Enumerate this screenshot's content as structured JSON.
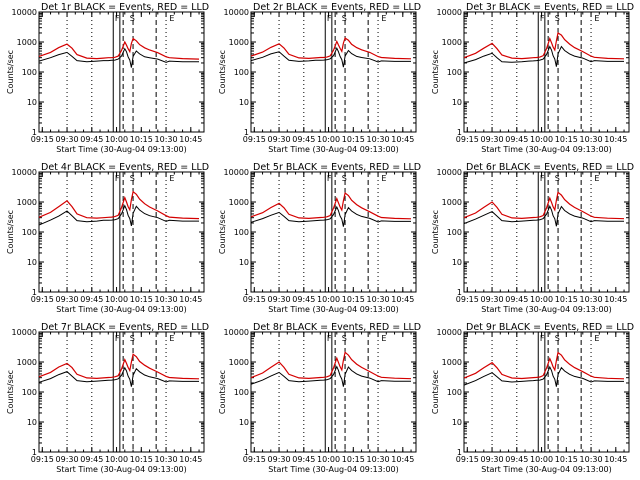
{
  "colors": {
    "events": "#000000",
    "lld": "#d40000",
    "background": "#ffffff"
  },
  "chart_data": [
    {
      "type": "line",
      "title": "Det 1r BLACK = Events, RED = LLD",
      "xlabel": "Start Time (30-Aug-04 09:13:00)",
      "ylabel": "Counts/sec",
      "ylim": [
        1,
        10000
      ],
      "yscale": "log",
      "x_tick_labels": [
        "09:15",
        "09:30",
        "09:45",
        "10:00",
        "10:15",
        "10:30",
        "10:45"
      ],
      "y_tick_labels": [
        "1",
        "10",
        "100",
        "1000",
        "10000"
      ],
      "markers": [
        "F",
        "S",
        "E"
      ]
    },
    {
      "type": "line",
      "title": "Det 2r BLACK = Events, RED = LLD",
      "xlabel": "Start Time (30-Aug-04 09:13:00)",
      "ylabel": "Counts/sec",
      "ylim": [
        1,
        10000
      ],
      "yscale": "log",
      "x_tick_labels": [
        "09:15",
        "09:30",
        "09:45",
        "10:00",
        "10:15",
        "10:30",
        "10:45"
      ],
      "y_tick_labels": [
        "1",
        "10",
        "100",
        "1000",
        "10000"
      ],
      "markers": [
        "F",
        "S",
        "E"
      ]
    },
    {
      "type": "line",
      "title": "Det 3r BLACK = Events, RED = LLD",
      "xlabel": "Start Time (30-Aug-04 09:13:00)",
      "ylabel": "Counts/sec",
      "ylim": [
        1,
        10000
      ],
      "yscale": "log",
      "x_tick_labels": [
        "09:15",
        "09:30",
        "09:45",
        "10:00",
        "10:15",
        "10:30",
        "10:45"
      ],
      "y_tick_labels": [
        "1",
        "10",
        "100",
        "1000",
        "10000"
      ],
      "markers": [
        "F",
        "S",
        "E"
      ]
    },
    {
      "type": "line",
      "title": "Det 4r BLACK = Events, RED = LLD",
      "xlabel": "Start Time (30-Aug-04 09:13:00)",
      "ylabel": "Counts/sec",
      "ylim": [
        1,
        10000
      ],
      "yscale": "log",
      "x_tick_labels": [
        "09:15",
        "09:30",
        "09:45",
        "10:00",
        "10:15",
        "10:30",
        "10:45"
      ],
      "y_tick_labels": [
        "1",
        "10",
        "100",
        "1000",
        "10000"
      ],
      "markers": [
        "F",
        "S",
        "E"
      ]
    },
    {
      "type": "line",
      "title": "Det 5r BLACK = Events, RED = LLD",
      "xlabel": "Start Time (30-Aug-04 09:13:00)",
      "ylabel": "Counts/sec",
      "ylim": [
        1,
        10000
      ],
      "yscale": "log",
      "x_tick_labels": [
        "09:15",
        "09:30",
        "09:45",
        "10:00",
        "10:15",
        "10:30",
        "10:45"
      ],
      "y_tick_labels": [
        "1",
        "10",
        "100",
        "1000",
        "10000"
      ],
      "markers": [
        "F",
        "S",
        "E"
      ]
    },
    {
      "type": "line",
      "title": "Det 6r BLACK = Events, RED = LLD",
      "xlabel": "Start Time (30-Aug-04 09:13:00)",
      "ylabel": "Counts/sec",
      "ylim": [
        1,
        10000
      ],
      "yscale": "log",
      "x_tick_labels": [
        "09:15",
        "09:30",
        "09:45",
        "10:00",
        "10:15",
        "10:30",
        "10:45"
      ],
      "y_tick_labels": [
        "1",
        "10",
        "100",
        "1000",
        "10000"
      ],
      "markers": [
        "F",
        "S",
        "E"
      ]
    },
    {
      "type": "line",
      "title": "Det 7r BLACK = Events, RED = LLD",
      "xlabel": "Start Time (30-Aug-04 09:13:00)",
      "ylabel": "Counts/sec",
      "ylim": [
        1,
        10000
      ],
      "yscale": "log",
      "x_tick_labels": [
        "09:15",
        "09:30",
        "09:45",
        "10:00",
        "10:15",
        "10:30",
        "10:45"
      ],
      "y_tick_labels": [
        "1",
        "10",
        "100",
        "1000",
        "10000"
      ],
      "markers": [
        "F",
        "S",
        "E"
      ]
    },
    {
      "type": "line",
      "title": "Det 8r BLACK = Events, RED = LLD",
      "xlabel": "Start Time (30-Aug-04 09:13:00)",
      "ylabel": "Counts/sec",
      "ylim": [
        1,
        10000
      ],
      "yscale": "log",
      "x_tick_labels": [
        "09:15",
        "09:30",
        "09:45",
        "10:00",
        "10:15",
        "10:30",
        "10:45"
      ],
      "y_tick_labels": [
        "1",
        "10",
        "100",
        "1000",
        "10000"
      ],
      "markers": [
        "F",
        "S",
        "E"
      ]
    },
    {
      "type": "line",
      "title": "Det 9r BLACK = Events, RED = LLD",
      "xlabel": "Start Time (30-Aug-04 09:13:00)",
      "ylabel": "Counts/sec",
      "ylim": [
        1,
        10000
      ],
      "yscale": "log",
      "x_tick_labels": [
        "09:15",
        "09:30",
        "09:45",
        "10:00",
        "10:15",
        "10:30",
        "10:45"
      ],
      "y_tick_labels": [
        "1",
        "10",
        "100",
        "1000",
        "10000"
      ],
      "markers": [
        "F",
        "S",
        "E"
      ]
    }
  ],
  "series_curves": {
    "x": [
      "09:13",
      "09:20",
      "09:25",
      "09:30",
      "09:33",
      "09:36",
      "09:42",
      "09:48",
      "09:52",
      "09:55",
      "09:57",
      "09:59",
      "10:01",
      "10:03",
      "10:05",
      "10:06",
      "10:07",
      "10:08",
      "10:09",
      "10:10",
      "10:12",
      "10:14",
      "10:17",
      "10:20",
      "10:25",
      "10:30",
      "10:32",
      "10:40",
      "10:50"
    ],
    "events": [
      [
        230,
        300,
        380,
        450,
        330,
        240,
        220,
        230,
        240,
        240,
        245,
        250,
        270,
        340,
        600,
        470,
        320,
        250,
        140,
        330,
        500,
        400,
        320,
        300,
        270,
        210,
        230,
        220,
        220
      ],
      [
        240,
        310,
        400,
        470,
        340,
        245,
        225,
        235,
        245,
        245,
        250,
        255,
        275,
        350,
        620,
        480,
        330,
        260,
        145,
        340,
        520,
        410,
        330,
        305,
        275,
        215,
        235,
        225,
        225
      ],
      [
        200,
        260,
        340,
        420,
        300,
        220,
        210,
        220,
        230,
        235,
        240,
        250,
        270,
        380,
        700,
        540,
        350,
        270,
        150,
        400,
        700,
        520,
        400,
        340,
        290,
        220,
        240,
        225,
        225
      ],
      [
        170,
        250,
        340,
        500,
        350,
        240,
        220,
        230,
        245,
        245,
        250,
        255,
        280,
        400,
        750,
        560,
        360,
        280,
        160,
        420,
        720,
        540,
        410,
        350,
        300,
        225,
        245,
        230,
        230
      ],
      [
        210,
        280,
        360,
        450,
        330,
        240,
        220,
        230,
        240,
        245,
        250,
        255,
        275,
        380,
        680,
        520,
        340,
        270,
        150,
        380,
        650,
        500,
        390,
        330,
        285,
        215,
        235,
        225,
        225
      ],
      [
        190,
        270,
        360,
        480,
        340,
        240,
        220,
        230,
        240,
        245,
        250,
        255,
        280,
        390,
        720,
        540,
        350,
        275,
        155,
        400,
        700,
        520,
        400,
        340,
        290,
        220,
        240,
        228,
        228
      ],
      [
        210,
        280,
        380,
        480,
        340,
        240,
        220,
        230,
        240,
        245,
        250,
        255,
        275,
        360,
        640,
        500,
        340,
        265,
        150,
        360,
        600,
        470,
        370,
        320,
        280,
        215,
        235,
        225,
        225
      ],
      [
        180,
        250,
        340,
        450,
        330,
        240,
        220,
        230,
        240,
        245,
        250,
        255,
        280,
        380,
        700,
        530,
        350,
        270,
        150,
        390,
        680,
        520,
        400,
        340,
        290,
        220,
        240,
        228,
        228
      ],
      [
        170,
        240,
        330,
        440,
        320,
        235,
        215,
        225,
        235,
        240,
        245,
        250,
        270,
        370,
        680,
        520,
        340,
        265,
        150,
        380,
        650,
        500,
        390,
        330,
        285,
        215,
        235,
        225,
        225
      ]
    ],
    "lld": [
      [
        330,
        450,
        650,
        850,
        620,
        380,
        290,
        280,
        290,
        300,
        300,
        310,
        340,
        520,
        1000,
        780,
        600,
        480,
        900,
        1300,
        1100,
        820,
        640,
        540,
        440,
        320,
        300,
        280,
        270
      ],
      [
        340,
        460,
        660,
        870,
        630,
        390,
        295,
        285,
        295,
        305,
        305,
        315,
        345,
        530,
        1050,
        800,
        610,
        490,
        920,
        1350,
        1150,
        840,
        650,
        550,
        450,
        325,
        305,
        285,
        275
      ],
      [
        300,
        420,
        620,
        900,
        600,
        370,
        290,
        280,
        290,
        300,
        305,
        315,
        350,
        600,
        1300,
        950,
        680,
        540,
        1100,
        2000,
        1700,
        1200,
        850,
        650,
        480,
        340,
        310,
        285,
        275
      ],
      [
        310,
        450,
        700,
        1100,
        700,
        400,
        300,
        290,
        300,
        310,
        315,
        325,
        360,
        650,
        1400,
        1000,
        700,
        550,
        1200,
        2200,
        1800,
        1250,
        880,
        680,
        500,
        350,
        315,
        290,
        280
      ],
      [
        320,
        440,
        650,
        900,
        640,
        390,
        295,
        285,
        295,
        305,
        310,
        320,
        355,
        620,
        1300,
        950,
        680,
        540,
        1100,
        2000,
        1650,
        1150,
        820,
        640,
        470,
        335,
        305,
        285,
        275
      ],
      [
        300,
        430,
        660,
        1000,
        660,
        390,
        295,
        285,
        295,
        305,
        310,
        320,
        355,
        630,
        1350,
        980,
        690,
        545,
        1150,
        2100,
        1700,
        1200,
        850,
        660,
        480,
        340,
        310,
        288,
        278
      ],
      [
        320,
        450,
        680,
        900,
        650,
        390,
        295,
        285,
        295,
        305,
        310,
        320,
        350,
        580,
        1200,
        900,
        660,
        520,
        1000,
        1800,
        1500,
        1050,
        780,
        620,
        460,
        330,
        305,
        285,
        275
      ],
      [
        300,
        430,
        660,
        1000,
        660,
        390,
        295,
        285,
        295,
        305,
        310,
        320,
        355,
        630,
        1350,
        980,
        690,
        545,
        1150,
        2100,
        1700,
        1200,
        850,
        660,
        480,
        340,
        310,
        288,
        278
      ],
      [
        290,
        420,
        640,
        950,
        640,
        385,
        292,
        282,
        292,
        302,
        307,
        317,
        352,
        620,
        1300,
        960,
        685,
        540,
        1120,
        2050,
        1680,
        1180,
        840,
        650,
        475,
        338,
        308,
        286,
        276
      ]
    ]
  }
}
